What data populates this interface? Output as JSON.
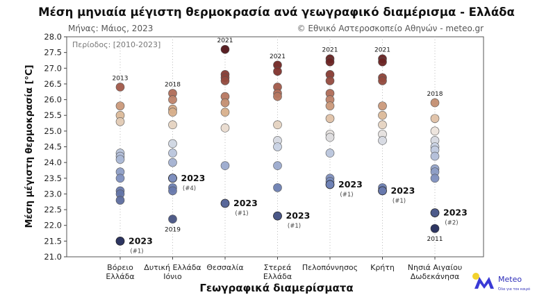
{
  "chart_data": {
    "type": "scatter",
    "title": "Μέση μηνιαία μέγιστη θερμοκρασία ανά γεωγραφικό διαμέρισμα - Ελλάδα",
    "subtitle_left": "Μήνας: Μάιος, 2023",
    "subtitle_right": "© Εθνικό Αστεροσκοπείο Αθηνών - meteo.gr",
    "period_note": "Περίοδος: [2010-2023]",
    "xlabel": "Γεωγραφικά διαμερίσματα",
    "ylabel": "Μέση μέγιστη θερμοκρασία [°C]",
    "ylim": [
      21.0,
      28.0
    ],
    "yticks": [
      "21.0",
      "21.5",
      "22.0",
      "22.5",
      "23.0",
      "23.5",
      "24.0",
      "24.5",
      "25.0",
      "25.5",
      "26.0",
      "26.5",
      "27.0",
      "27.5",
      "28.0"
    ],
    "grid": "vertical dotted",
    "categories": [
      {
        "label1": "Βόρειο",
        "label2": "Ελλάδα",
        "values": [
          26.4,
          25.8,
          25.5,
          25.3,
          24.3,
          24.2,
          24.1,
          23.7,
          23.5,
          23.1,
          23.0,
          22.8
        ],
        "max_label": "2013",
        "min_label": "",
        "value_2023": 21.5,
        "rank_2023": "(#1)"
      },
      {
        "label1": "Δυτική Ελλάδα",
        "label2": "Ιόνιο",
        "values": [
          26.2,
          26.0,
          25.7,
          25.6,
          25.2,
          24.6,
          24.3,
          24.0,
          23.5,
          23.2,
          23.1,
          22.2
        ],
        "max_label": "2018",
        "min_label": "2019",
        "value_2023": 23.5,
        "rank_2023": "(#4)"
      },
      {
        "label1": "Θεσσαλία",
        "label2": "",
        "values": [
          27.6,
          26.8,
          26.7,
          26.6,
          26.1,
          25.9,
          25.6,
          25.1,
          23.9
        ],
        "max_label": "2021",
        "min_label": "",
        "value_2023": 22.7,
        "rank_2023": "(#1)"
      },
      {
        "label1": "Στερεά",
        "label2": "Ελλάδα",
        "values": [
          27.1,
          26.9,
          26.4,
          26.2,
          26.1,
          25.2,
          24.7,
          24.5,
          23.9,
          23.2
        ],
        "max_label": "2021",
        "min_label": "",
        "value_2023": 22.3,
        "rank_2023": "(#1)"
      },
      {
        "label1": "Πελοπόννησος",
        "label2": "",
        "values": [
          27.3,
          27.2,
          26.8,
          26.6,
          26.2,
          26.0,
          25.8,
          25.4,
          24.9,
          24.8,
          24.3,
          23.5,
          23.4
        ],
        "max_label": "2021",
        "min_label": "",
        "value_2023": 23.3,
        "rank_2023": "(#1)"
      },
      {
        "label1": "Κρήτη",
        "label2": "",
        "values": [
          27.3,
          27.2,
          26.7,
          26.6,
          25.8,
          25.5,
          25.2,
          24.9,
          24.7,
          23.2
        ],
        "max_label": "2021",
        "min_label": "",
        "value_2023": 23.1,
        "rank_2023": "(#1)"
      },
      {
        "label1": "Νησιά Αιγαίου",
        "label2": "Δωδεκάνησα",
        "values": [
          25.9,
          25.4,
          25.0,
          24.7,
          24.5,
          24.4,
          24.2,
          23.8,
          23.7,
          23.5
        ],
        "max_label": "2018",
        "min_label": "2011",
        "value_2023": 22.4,
        "rank_2023": "(#2)",
        "min_value": 21.9
      }
    ],
    "label_2023": "2023",
    "colors": {
      "dark_red": "#5a1518",
      "red": "#8b3a30",
      "light_red": "#a8604e",
      "tan": "#d8b08c",
      "light": "#ece4dc",
      "light_blue": "#b7c4dc",
      "blue": "#6f82b6",
      "dark_blue": "#2d3561",
      "axis": "#444444",
      "grid": "#bbbbbb"
    }
  },
  "logo": {
    "name": "Meteo",
    "tagline": "Όλα για τον καιρό"
  }
}
